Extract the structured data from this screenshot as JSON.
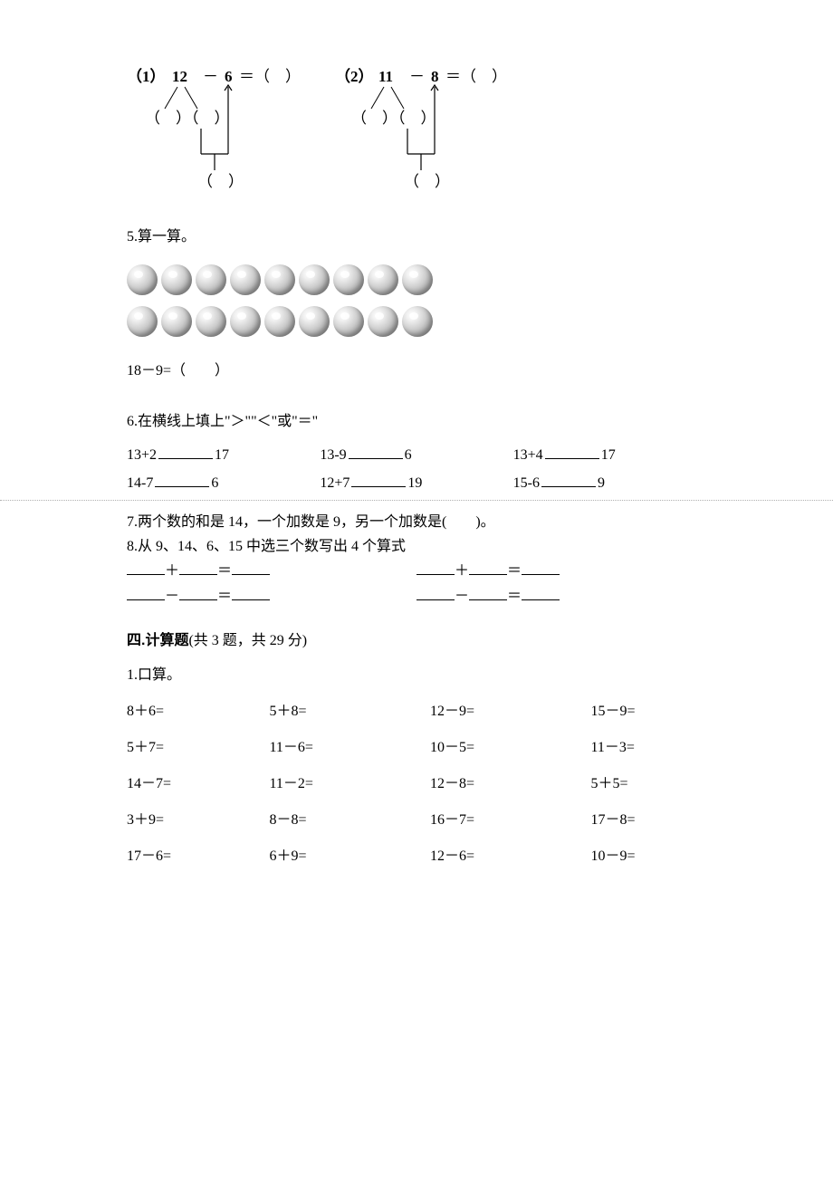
{
  "diagram": {
    "p1": {
      "label": "（1）",
      "a": "12",
      "op": "－",
      "b": "6",
      "eq": "＝（　）"
    },
    "p2": {
      "label": "（2）",
      "a": "11",
      "op": "－",
      "b": "8",
      "eq": "＝（　）"
    },
    "paren_pair": "（　）（　）",
    "paren_single": "（　）"
  },
  "q5": {
    "label": "5.算一算。",
    "row1_count": 9,
    "row2_count": 9,
    "equation": "18－9=（　　）"
  },
  "q6": {
    "label": "6.在横线上填上\"＞\"\"＜\"或\"＝\"",
    "rows": [
      [
        {
          "l": "13+2",
          "r": "17"
        },
        {
          "l": "13-9",
          "r": "6"
        },
        {
          "l": "13+4",
          "r": "17"
        }
      ],
      [
        {
          "l": "14-7",
          "r": "6"
        },
        {
          "l": "12+7",
          "r": "19"
        },
        {
          "l": "15-6",
          "r": "9"
        }
      ]
    ]
  },
  "q7": {
    "text": "7.两个数的和是 14，一个加数是 9，另一个加数是(　　)。"
  },
  "q8": {
    "text": "8.从 9、14、6、15 中选三个数写出 4 个算式",
    "plus": "＋",
    "minus": "－",
    "eq": "＝"
  },
  "section4": {
    "head_bold": "四.计算题",
    "head_rest": "(共 3 题，共 29 分)"
  },
  "mental": {
    "label": "1.口算。",
    "rows": [
      [
        "8＋6=",
        "5＋8=",
        "12－9=",
        "15－9="
      ],
      [
        "5＋7=",
        "11－6=",
        "10－5=",
        "11－3="
      ],
      [
        "14－7=",
        "11－2=",
        "12－8=",
        "5＋5="
      ],
      [
        "3＋9=",
        "8－8=",
        "16－7=",
        "17－8="
      ],
      [
        "17－6=",
        "6＋9=",
        "12－6=",
        "10－9="
      ]
    ]
  },
  "colors": {
    "text": "#000000",
    "background": "#ffffff",
    "dotted": "#b0b0b0"
  }
}
